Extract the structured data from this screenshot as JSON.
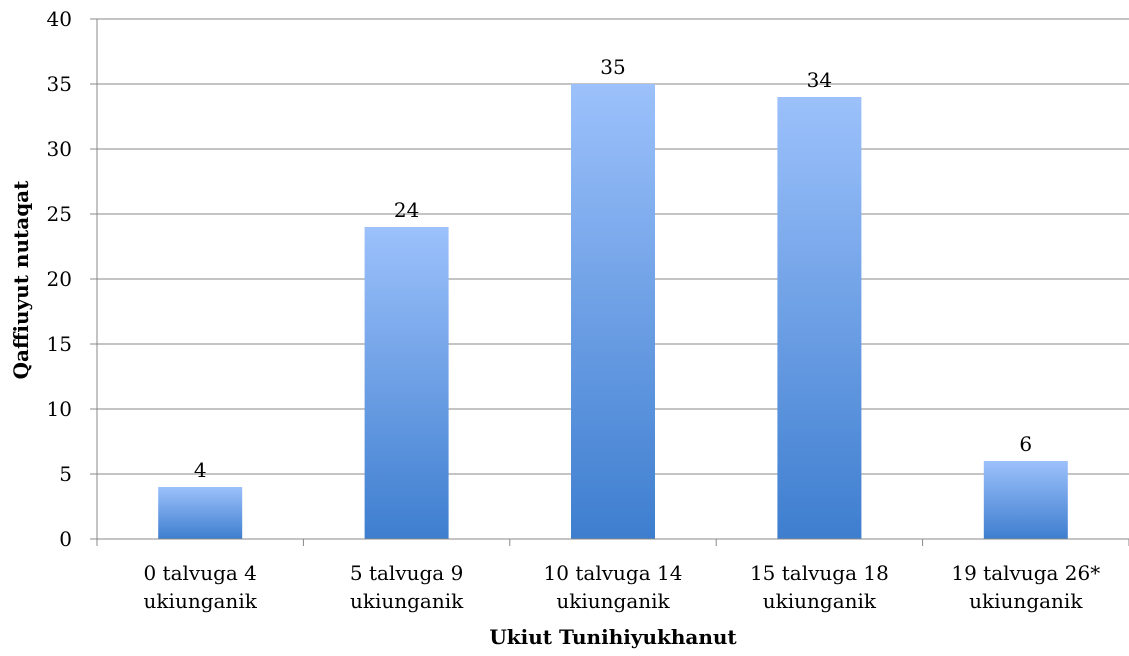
{
  "chart_data": {
    "type": "bar",
    "categories": [
      [
        "0 talvuga 4",
        "ukiunganik"
      ],
      [
        "5 talvuga 9",
        "ukiunganik"
      ],
      [
        "10 talvuga 14",
        "ukiunganik"
      ],
      [
        "15 talvuga 18",
        "ukiunganik"
      ],
      [
        "19 talvuga 26*",
        "ukiunganik"
      ]
    ],
    "values": [
      4,
      24,
      35,
      34,
      6
    ],
    "title": "",
    "xlabel": "Ukiut Tunihiyukhanut",
    "ylabel": "Qaffiuyut nutaqat",
    "ylim": [
      0,
      40
    ],
    "yticks": [
      0,
      5,
      10,
      15,
      20,
      25,
      30,
      35,
      40
    ],
    "grid": true,
    "legend": "none",
    "colors": {
      "bar_top": "#9CC1FB",
      "bar_bottom": "#3E7ECF",
      "grid": "#888888",
      "axis": "#888888"
    }
  }
}
